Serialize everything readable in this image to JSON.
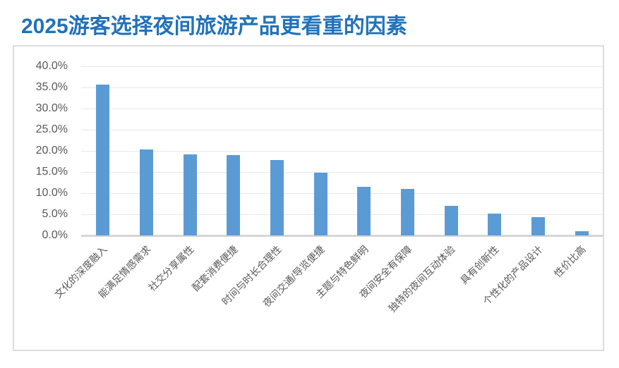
{
  "title": "2025游客选择夜间旅游产品更看重的因素",
  "colors": {
    "title": "#2272b9",
    "bar": "#5b9bd5",
    "axis_text": "#595959",
    "gridline": "#e7e7e7",
    "axis_line": "#d6d6d6",
    "frame_border": "#dcdcdc",
    "background": "#ffffff"
  },
  "chart_data": {
    "type": "bar",
    "title": "2025游客选择夜间旅游产品更看重的因素",
    "categories": [
      "文化的深度融入",
      "能满足情感需求",
      "社交分享属性",
      "配套消费便捷",
      "时间与时长合理性",
      "夜间交通/导览便捷",
      "主题与特色鲜明",
      "夜间安全有保障",
      "独特的夜间互动体验",
      "具有创新性",
      "个性化的产品设计",
      "性价比高"
    ],
    "values": [
      35.6,
      20.3,
      19.1,
      19.0,
      17.8,
      14.8,
      11.5,
      11.0,
      7.0,
      5.1,
      4.4,
      1.0
    ],
    "unit": "%",
    "xlabel": "",
    "ylabel": "",
    "ylim": [
      0,
      40
    ],
    "ytick_step": 5,
    "ytick_labels": [
      "0.0%",
      "5.0%",
      "10.0%",
      "15.0%",
      "20.0%",
      "25.0%",
      "30.0%",
      "35.0%",
      "40.0%"
    ],
    "grid": true,
    "legend": false,
    "bar_color": "#5b9bd5",
    "x_label_rotation_deg": 45
  }
}
